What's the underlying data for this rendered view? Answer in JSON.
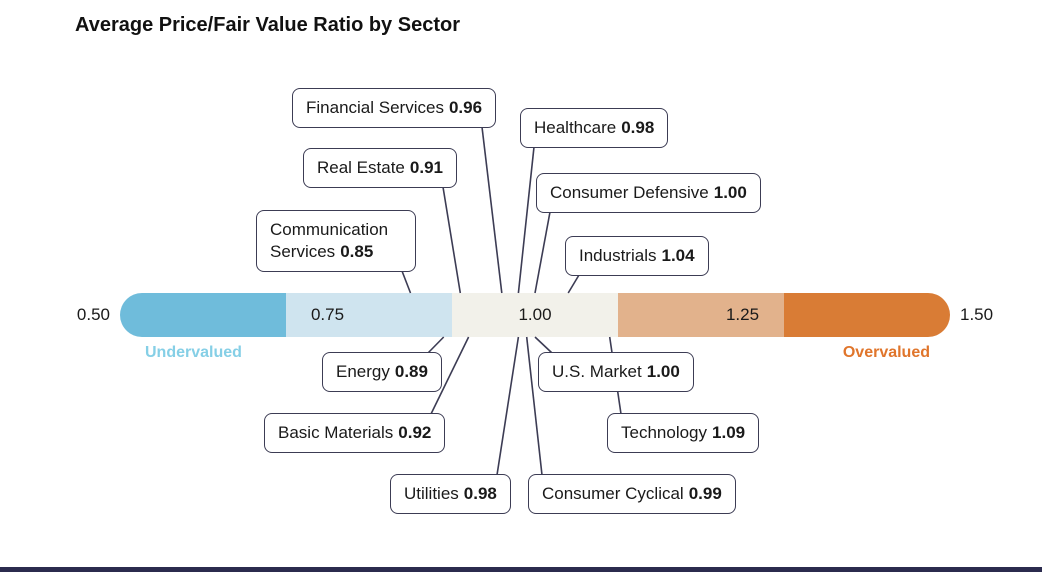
{
  "bottom_strip_color": "#2b2b4e",
  "chart_data": {
    "type": "labeled-scale",
    "title": "Average Price/Fair Value Ratio by Sector",
    "axis_min": 0.5,
    "axis_max": 1.5,
    "tick_values": [
      0.5,
      0.75,
      1.0,
      1.25,
      1.5
    ],
    "tick_labels": [
      "0.50",
      "0.75",
      "1.00",
      "1.25",
      "1.50"
    ],
    "segments": [
      {
        "from": 0.5,
        "to": 0.7,
        "color": "#6fbcdb"
      },
      {
        "from": 0.7,
        "to": 0.9,
        "color": "#cfe4ef"
      },
      {
        "from": 0.9,
        "to": 1.1,
        "color": "#f2f1ea"
      },
      {
        "from": 1.1,
        "to": 1.3,
        "color": "#e2b28c"
      },
      {
        "from": 1.3,
        "to": 1.5,
        "color": "#d97c35"
      }
    ],
    "zone_labels": [
      {
        "text": "Undervalued",
        "side": "left",
        "color": "#85cfe6"
      },
      {
        "text": "Overvalued",
        "side": "right",
        "color": "#e0752b"
      }
    ],
    "points": [
      {
        "sector": "Financial Services",
        "value": 0.96,
        "value_label": "0.96"
      },
      {
        "sector": "Healthcare",
        "value": 0.98,
        "value_label": "0.98"
      },
      {
        "sector": "Real Estate",
        "value": 0.91,
        "value_label": "0.91"
      },
      {
        "sector": "Consumer Defensive",
        "value": 1.0,
        "value_label": "1.00"
      },
      {
        "sector": "Communication Services",
        "value": 0.85,
        "value_label": "0.85"
      },
      {
        "sector": "Industrials",
        "value": 1.04,
        "value_label": "1.04"
      },
      {
        "sector": "Energy",
        "value": 0.89,
        "value_label": "0.89"
      },
      {
        "sector": "U.S. Market",
        "value": 1.0,
        "value_label": "1.00"
      },
      {
        "sector": "Basic Materials",
        "value": 0.92,
        "value_label": "0.92"
      },
      {
        "sector": "Technology",
        "value": 1.09,
        "value_label": "1.09"
      },
      {
        "sector": "Utilities",
        "value": 0.98,
        "value_label": "0.98"
      },
      {
        "sector": "Consumer Cyclical",
        "value": 0.99,
        "value_label": "0.99"
      }
    ],
    "line_color": "#3c3c54",
    "text_color": "#1a1a1a"
  }
}
